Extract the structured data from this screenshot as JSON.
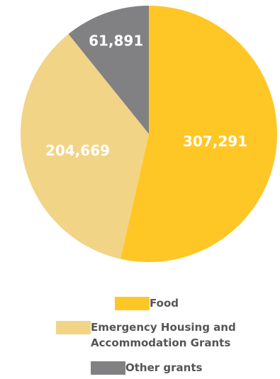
{
  "chart_data": {
    "type": "pie",
    "series": [
      {
        "name": "Food",
        "value": 307291,
        "label": "307,291",
        "color": "#ffc726"
      },
      {
        "name": "Emergency Housing and Accommodation Grants",
        "value": 204669,
        "label": "204,669",
        "color": "#f1d486"
      },
      {
        "name": "Other grants",
        "value": 61891,
        "label": "61,891",
        "color": "#818184"
      }
    ],
    "legend": {
      "position": "bottom",
      "items": [
        {
          "lines": [
            "Food"
          ],
          "color": "#ffc726"
        },
        {
          "lines": [
            "Emergency Housing and",
            "Accommodation Grants"
          ],
          "color": "#f1d486"
        },
        {
          "lines": [
            "Other grants"
          ],
          "color": "#818184"
        }
      ]
    }
  }
}
